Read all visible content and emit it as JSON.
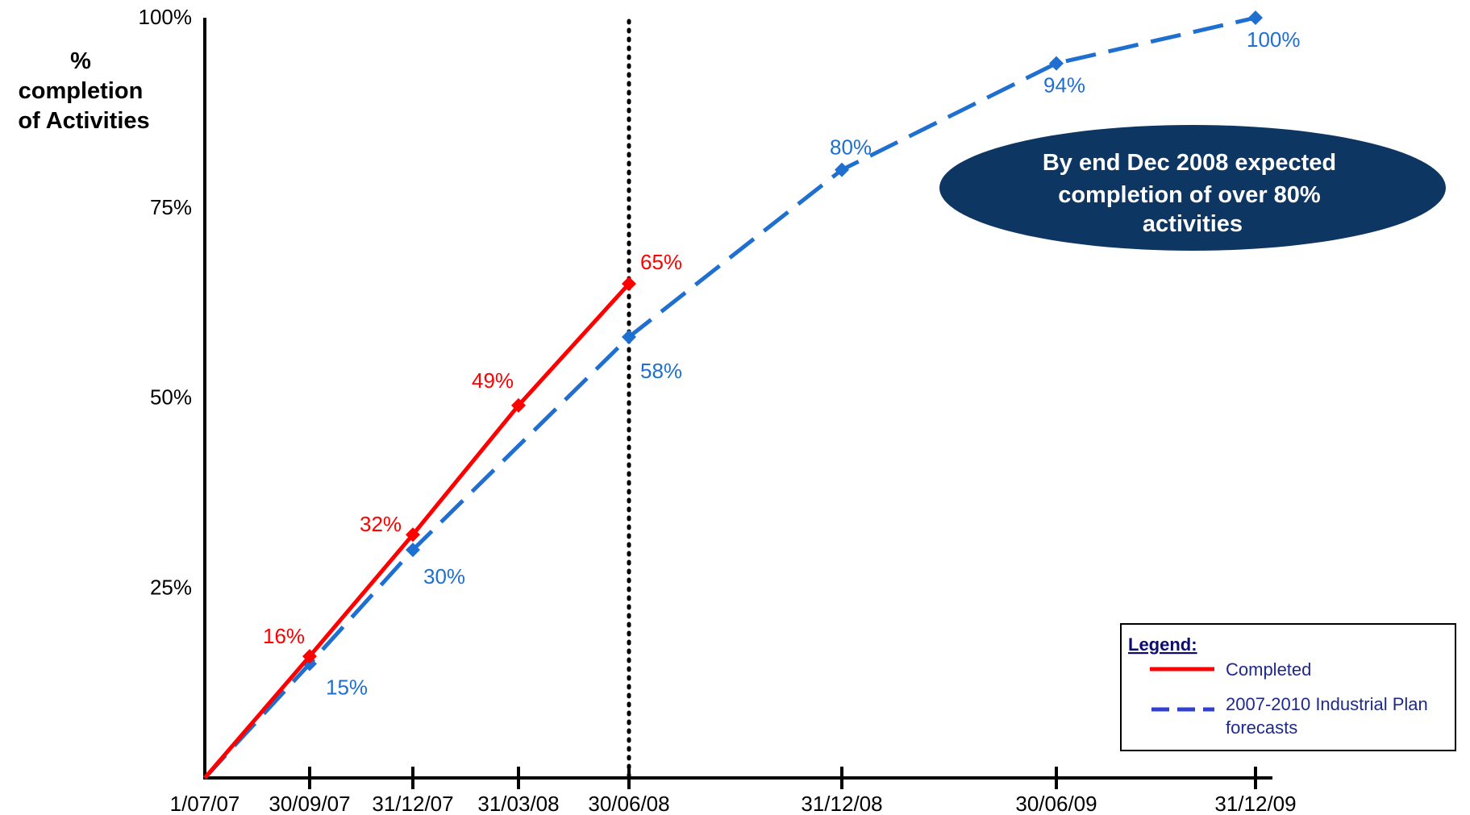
{
  "chart_data": {
    "type": "line",
    "ylabel_lines": [
      "%",
      "completion",
      "of Activities"
    ],
    "x_tick_labels": [
      "1/07/07",
      "30/09/07",
      "31/12/07",
      "31/03/08",
      "30/06/08",
      "31/12/08",
      "30/06/09",
      "31/12/09"
    ],
    "y_tick_labels": [
      "25%",
      "50%",
      "75%",
      "100%"
    ],
    "y_ticks": [
      25,
      50,
      75,
      100
    ],
    "ylim": [
      0,
      100
    ],
    "series": [
      {
        "name": "Completed",
        "color": "#ff0000",
        "style": "solid",
        "x": [
          "1/07/07",
          "30/09/07",
          "31/12/07",
          "31/03/08",
          "30/06/08"
        ],
        "values": [
          0,
          16,
          32,
          49,
          65
        ],
        "data_labels": [
          "",
          "16%",
          "32%",
          "49%",
          "65%"
        ]
      },
      {
        "name": "2007-2010 Industrial Plan forecasts",
        "color": "#1f6fd0",
        "style": "dashed",
        "x": [
          "1/07/07",
          "30/09/07",
          "31/12/07",
          "30/06/08",
          "31/12/08",
          "30/06/09",
          "31/12/09"
        ],
        "values": [
          0,
          15,
          30,
          58,
          80,
          94,
          100
        ],
        "data_labels": [
          "",
          "15%",
          "30%",
          "58%",
          "80%",
          "94%",
          "100%"
        ]
      }
    ],
    "reference_line": {
      "x": "30/06/08",
      "style": "dotted",
      "color": "#000000"
    },
    "annotation": {
      "lines": [
        "By end Dec 2008 expected",
        "completion of over 80%",
        "activities"
      ],
      "fill": "#0d3762"
    },
    "legend": {
      "title": "Legend:",
      "placement": "bottom-right",
      "entries": [
        {
          "lines": [
            "Completed"
          ],
          "color": "#ff0000",
          "style": "solid"
        },
        {
          "lines": [
            "2007-2010 Industrial Plan",
            "forecasts"
          ],
          "color": "#3040d0",
          "style": "dashed"
        }
      ]
    },
    "grid": false
  }
}
